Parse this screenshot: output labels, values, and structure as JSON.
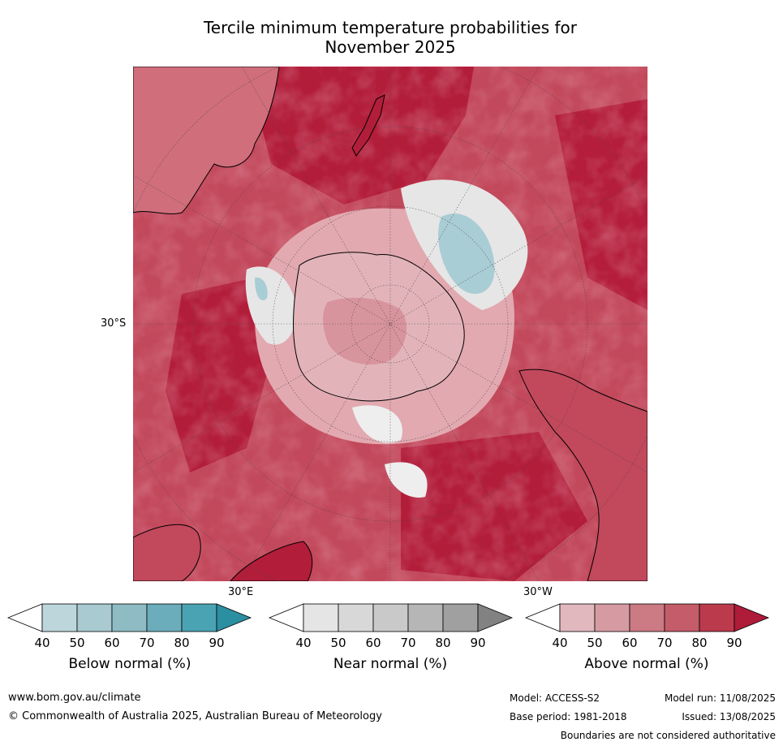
{
  "title_line1": "Tercile minimum temperature probabilities for",
  "title_line2": "November 2025",
  "map": {
    "projection": "south-polar-stereographic",
    "lat_label": "30°S",
    "lon_labels": [
      "30°E",
      "30°W"
    ]
  },
  "colorbars": [
    {
      "label": "Below normal (%)",
      "ticks": [
        "40",
        "50",
        "60",
        "70",
        "80",
        "90"
      ],
      "colors": [
        "#ffffff",
        "#bdd6dc",
        "#a8cad0",
        "#8fbcc4",
        "#6badbb",
        "#4aa3b3",
        "#2b8fa2"
      ]
    },
    {
      "label": "Near normal (%)",
      "ticks": [
        "40",
        "50",
        "60",
        "70",
        "80",
        "90"
      ],
      "colors": [
        "#ffffff",
        "#e5e5e5",
        "#d8d8d8",
        "#c9c9c9",
        "#b6b6b6",
        "#a0a0a0",
        "#828282"
      ]
    },
    {
      "label": "Above normal (%)",
      "ticks": [
        "40",
        "50",
        "60",
        "70",
        "80",
        "90"
      ],
      "colors": [
        "#ffffff",
        "#e1b8bd",
        "#d69ba2",
        "#cc7a84",
        "#c45c69",
        "#bb3a4c",
        "#ae1c39"
      ]
    }
  ],
  "footer": {
    "website": "www.bom.gov.au/climate",
    "copyright": "© Commonwealth of Australia 2025, Australian Bureau of Meteorology",
    "model": "Model: ACCESS-S2",
    "model_run": "Model run: 11/08/2025",
    "base_period": "Base period: 1981-2018",
    "issued": "Issued: 13/08/2025",
    "disclaimer": "Boundaries are not considered authoritative"
  }
}
